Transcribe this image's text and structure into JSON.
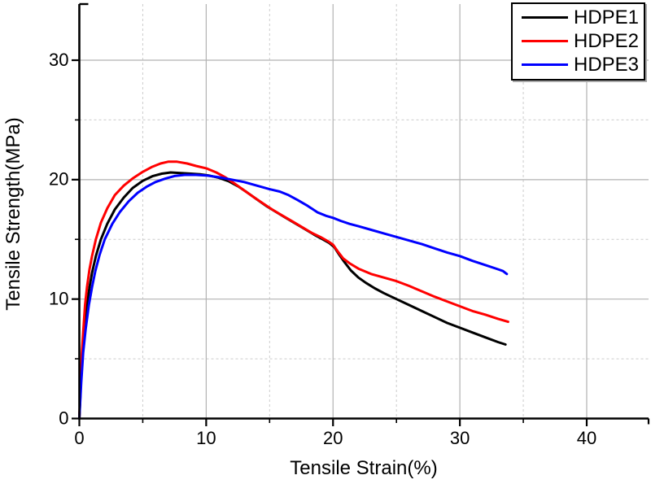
{
  "chart_data": {
    "type": "line",
    "title": "",
    "xlabel": "Tensile Strain(%)",
    "ylabel": "Tensile Strength(MPa)",
    "xlim": [
      0,
      44.9
    ],
    "ylim": [
      0,
      34.7
    ],
    "x_major_ticks": [
      0,
      10,
      20,
      30,
      40
    ],
    "x_minor_ticks": [
      5,
      15,
      25,
      35
    ],
    "y_major_ticks": [
      0,
      10,
      20,
      30
    ],
    "y_minor_ticks": [
      5,
      15,
      25
    ],
    "grid": {
      "major": "solid",
      "minor": "dashed"
    },
    "legend_position": "top-right",
    "series": [
      {
        "name": "HDPE1",
        "color": "#000000",
        "points": [
          [
            0,
            0
          ],
          [
            0.12,
            3
          ],
          [
            0.25,
            5.5
          ],
          [
            0.4,
            7.5
          ],
          [
            0.6,
            9.5
          ],
          [
            0.8,
            11
          ],
          [
            1.0,
            12.2
          ],
          [
            1.3,
            13.6
          ],
          [
            1.7,
            15
          ],
          [
            2.2,
            16.3
          ],
          [
            2.8,
            17.5
          ],
          [
            3.5,
            18.5
          ],
          [
            4.2,
            19.3
          ],
          [
            5,
            19.9
          ],
          [
            5.8,
            20.3
          ],
          [
            6.5,
            20.5
          ],
          [
            7.2,
            20.6
          ],
          [
            8,
            20.55
          ],
          [
            8.8,
            20.5
          ],
          [
            9.5,
            20.45
          ],
          [
            10.2,
            20.35
          ],
          [
            11,
            20.15
          ],
          [
            11.8,
            19.85
          ],
          [
            12.5,
            19.45
          ],
          [
            13.2,
            18.95
          ],
          [
            14,
            18.35
          ],
          [
            14.8,
            17.75
          ],
          [
            15.5,
            17.3
          ],
          [
            16.2,
            16.85
          ],
          [
            17,
            16.35
          ],
          [
            17.8,
            15.85
          ],
          [
            18.5,
            15.4
          ],
          [
            19.2,
            15.0
          ],
          [
            19.7,
            14.7
          ],
          [
            20.1,
            14.35
          ],
          [
            20.5,
            13.7
          ],
          [
            20.9,
            13.1
          ],
          [
            21.4,
            12.4
          ],
          [
            22,
            11.8
          ],
          [
            22.6,
            11.35
          ],
          [
            23.3,
            10.9
          ],
          [
            24,
            10.5
          ],
          [
            25,
            10.0
          ],
          [
            26,
            9.5
          ],
          [
            27,
            9.0
          ],
          [
            28,
            8.5
          ],
          [
            29,
            8.0
          ],
          [
            30,
            7.6
          ],
          [
            31,
            7.2
          ],
          [
            32,
            6.8
          ],
          [
            33,
            6.4
          ],
          [
            33.6,
            6.2
          ]
        ]
      },
      {
        "name": "HDPE2",
        "color": "#ff0000",
        "points": [
          [
            0,
            0
          ],
          [
            0.1,
            3
          ],
          [
            0.2,
            5.5
          ],
          [
            0.32,
            7.5
          ],
          [
            0.45,
            9.5
          ],
          [
            0.6,
            11
          ],
          [
            0.8,
            12.5
          ],
          [
            1.0,
            13.6
          ],
          [
            1.3,
            15
          ],
          [
            1.7,
            16.4
          ],
          [
            2.2,
            17.6
          ],
          [
            2.8,
            18.7
          ],
          [
            3.5,
            19.5
          ],
          [
            4.2,
            20.1
          ],
          [
            5,
            20.65
          ],
          [
            5.7,
            21.05
          ],
          [
            6.4,
            21.35
          ],
          [
            7,
            21.5
          ],
          [
            7.7,
            21.5
          ],
          [
            8.5,
            21.35
          ],
          [
            9.2,
            21.15
          ],
          [
            10,
            20.95
          ],
          [
            10.8,
            20.6
          ],
          [
            11.5,
            20.2
          ],
          [
            12.2,
            19.7
          ],
          [
            13,
            19.1
          ],
          [
            13.8,
            18.5
          ],
          [
            14.5,
            18.0
          ],
          [
            15.2,
            17.5
          ],
          [
            16,
            17.0
          ],
          [
            16.8,
            16.5
          ],
          [
            17.6,
            16.0
          ],
          [
            18.4,
            15.5
          ],
          [
            19,
            15.2
          ],
          [
            19.6,
            14.85
          ],
          [
            20,
            14.55
          ],
          [
            20.4,
            13.95
          ],
          [
            20.8,
            13.4
          ],
          [
            21.3,
            13.0
          ],
          [
            22,
            12.55
          ],
          [
            23,
            12.1
          ],
          [
            24,
            11.8
          ],
          [
            25,
            11.5
          ],
          [
            26,
            11.1
          ],
          [
            27,
            10.65
          ],
          [
            28,
            10.2
          ],
          [
            29,
            9.8
          ],
          [
            30,
            9.4
          ],
          [
            31,
            9.0
          ],
          [
            32,
            8.7
          ],
          [
            33,
            8.35
          ],
          [
            33.8,
            8.1
          ]
        ]
      },
      {
        "name": "HDPE3",
        "color": "#0000ff",
        "points": [
          [
            0,
            0
          ],
          [
            0.15,
            3
          ],
          [
            0.3,
            5.5
          ],
          [
            0.5,
            7.5
          ],
          [
            0.75,
            9.5
          ],
          [
            1.0,
            11
          ],
          [
            1.25,
            12.3
          ],
          [
            1.6,
            13.7
          ],
          [
            2.0,
            15
          ],
          [
            2.6,
            16.3
          ],
          [
            3.2,
            17.3
          ],
          [
            3.9,
            18.2
          ],
          [
            4.6,
            18.9
          ],
          [
            5.3,
            19.4
          ],
          [
            6.0,
            19.8
          ],
          [
            6.8,
            20.1
          ],
          [
            7.5,
            20.3
          ],
          [
            8.3,
            20.4
          ],
          [
            9.2,
            20.4
          ],
          [
            10,
            20.35
          ],
          [
            11,
            20.2
          ],
          [
            12,
            20.0
          ],
          [
            13,
            19.8
          ],
          [
            14,
            19.5
          ],
          [
            15,
            19.2
          ],
          [
            15.8,
            19.0
          ],
          [
            16.5,
            18.7
          ],
          [
            17.2,
            18.3
          ],
          [
            18,
            17.8
          ],
          [
            18.8,
            17.25
          ],
          [
            19.5,
            16.95
          ],
          [
            20,
            16.8
          ],
          [
            20.6,
            16.55
          ],
          [
            21.3,
            16.3
          ],
          [
            22,
            16.1
          ],
          [
            23,
            15.8
          ],
          [
            24,
            15.5
          ],
          [
            25,
            15.2
          ],
          [
            26,
            14.9
          ],
          [
            27,
            14.6
          ],
          [
            28,
            14.25
          ],
          [
            29,
            13.9
          ],
          [
            30,
            13.6
          ],
          [
            31,
            13.2
          ],
          [
            32,
            12.85
          ],
          [
            33,
            12.5
          ],
          [
            33.4,
            12.35
          ],
          [
            33.7,
            12.1
          ]
        ]
      }
    ]
  },
  "colors": {
    "axis": "#000000",
    "tick_label": "#000000",
    "grid_major": "#b2b2b2",
    "grid_minor": "#cccccc",
    "background": "#ffffff",
    "legend_shadow": "#a8a8a8"
  }
}
